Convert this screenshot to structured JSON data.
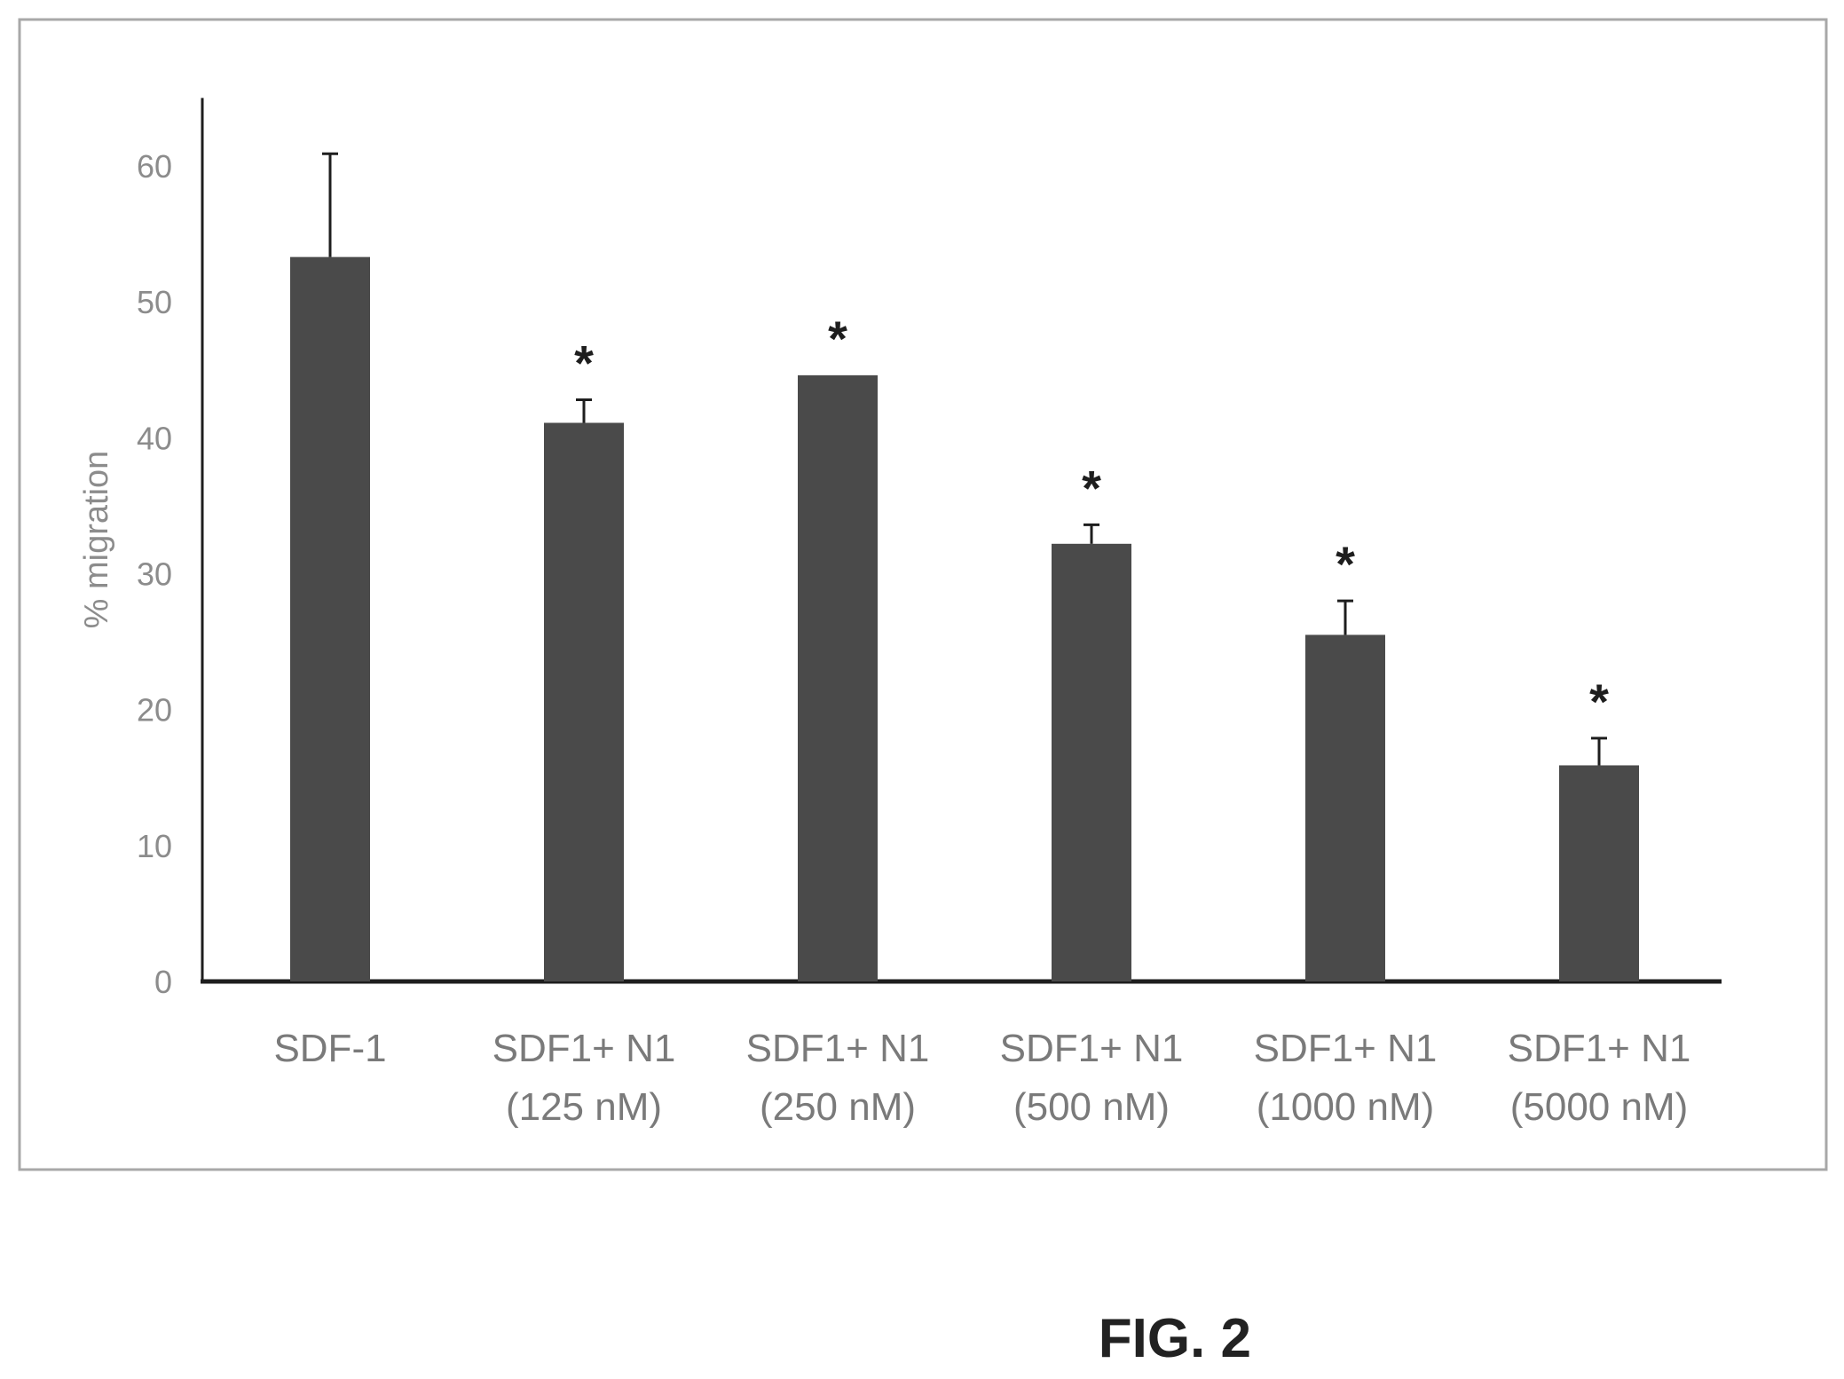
{
  "figure_label": "FIG. 2",
  "colors": {
    "bar": "#4a4a4a",
    "axis": "#1e1e1e",
    "tick_text": "#8c8c8c",
    "category_text": "#7a7a7a",
    "frame": "#a8a8a8"
  },
  "chart_data": {
    "type": "bar",
    "title": "",
    "xlabel": "",
    "ylabel": "% migration",
    "ylim": [
      0,
      65
    ],
    "yticks": [
      0,
      10,
      20,
      30,
      40,
      50,
      60
    ],
    "categories": [
      [
        "SDF-1"
      ],
      [
        "SDF1+ N1",
        "(125 nM)"
      ],
      [
        "SDF1+ N1",
        "(250 nM)"
      ],
      [
        "SDF1+ N1",
        "(500 nM)"
      ],
      [
        "SDF1+ N1",
        "(1000 nM)"
      ],
      [
        "SDF1+ N1",
        "(5000 nM)"
      ]
    ],
    "values": [
      53.3,
      41.1,
      44.6,
      32.2,
      25.5,
      15.9
    ],
    "error_upper": [
      60.9,
      42.8,
      44.6,
      33.6,
      28.0,
      17.9
    ],
    "significance": [
      "",
      "*",
      "*",
      "*",
      "*",
      "*"
    ],
    "grid": false,
    "legend": "none"
  }
}
